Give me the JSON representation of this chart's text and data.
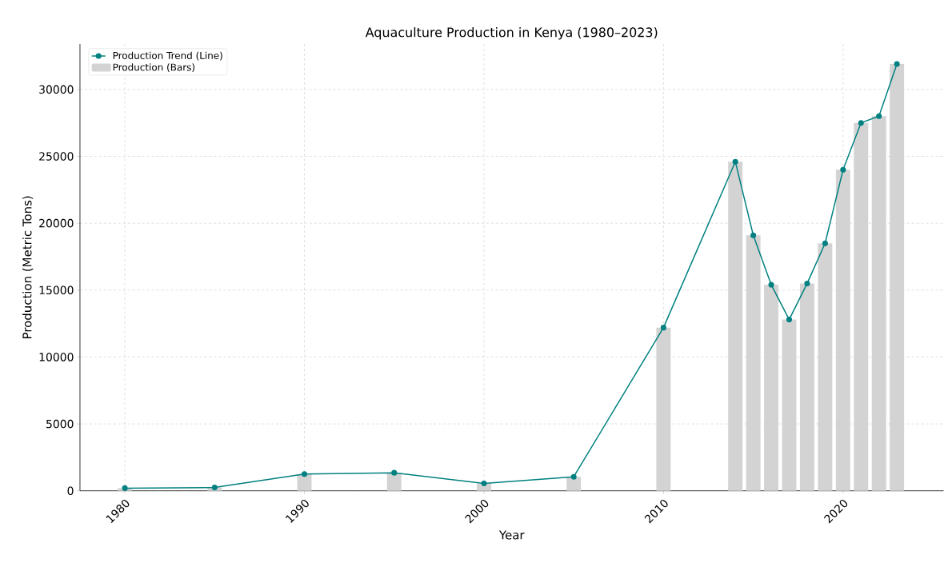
{
  "chart_data": {
    "type": "line",
    "title": "Aquaculture Production in Kenya (1980–2023)",
    "xlabel": "Year",
    "ylabel": "Production (Metric Tons)",
    "x": [
      1980,
      1985,
      1990,
      1995,
      2000,
      2005,
      2010,
      2014,
      2015,
      2016,
      2017,
      2018,
      2019,
      2020,
      2021,
      2022,
      2023
    ],
    "series": [
      {
        "name": "Production Trend (Line)",
        "color": "#008080",
        "values": [
          200,
          250,
          1250,
          1350,
          550,
          1050,
          12200,
          24600,
          19100,
          15400,
          12800,
          15500,
          18500,
          24000,
          27500,
          28000,
          31900
        ]
      },
      {
        "name": "Production (Bars)",
        "type": "bar",
        "color": "#d3d3d3",
        "values": [
          200,
          250,
          1250,
          1350,
          550,
          1050,
          12200,
          24600,
          19100,
          15400,
          12800,
          15500,
          18500,
          24000,
          27500,
          28000,
          31900
        ]
      }
    ],
    "xlim": [
      1977.5,
      2025.6
    ],
    "ylim": [
      0,
      33400
    ],
    "xticks": [
      1980,
      1990,
      2000,
      2010,
      2020
    ],
    "yticks": [
      0,
      5000,
      10000,
      15000,
      20000,
      25000,
      30000
    ],
    "grid": true,
    "legend": "top left",
    "marker": "circle"
  }
}
